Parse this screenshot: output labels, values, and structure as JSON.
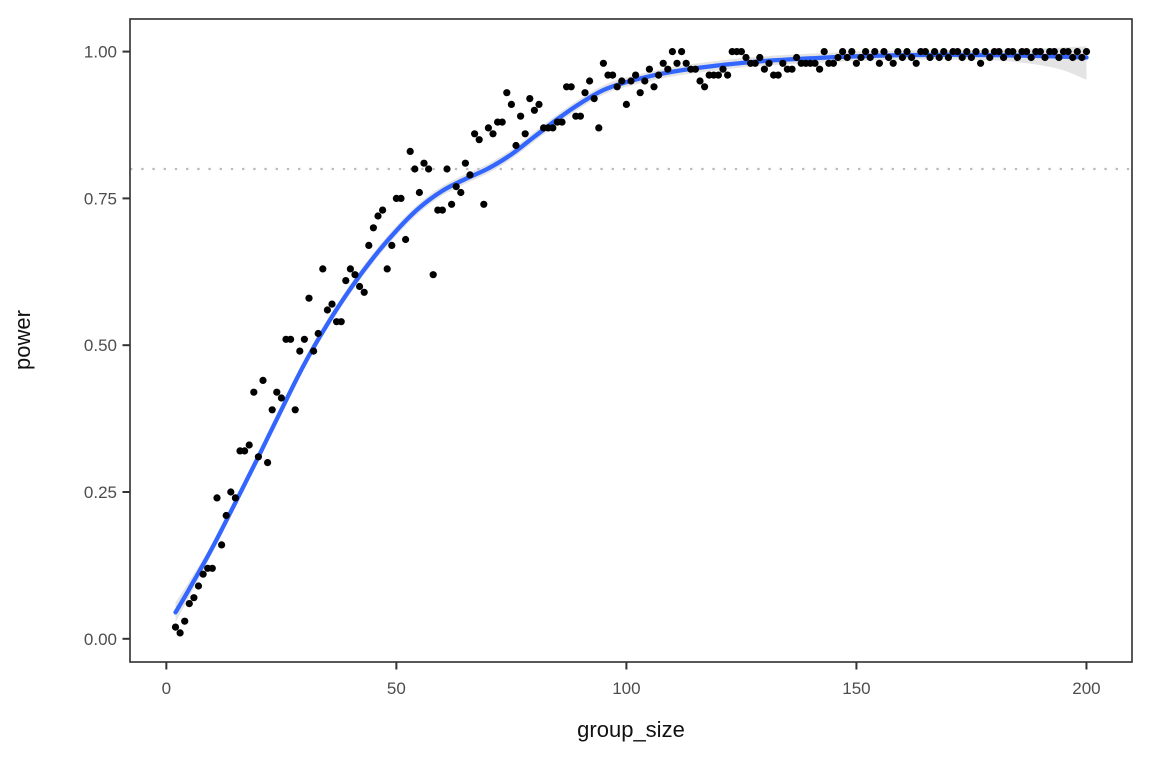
{
  "chart_data": {
    "type": "scatter",
    "title": "",
    "xlabel": "group_size",
    "ylabel": "power",
    "xlim": [
      -7.9,
      209.9
    ],
    "ylim": [
      -0.0395,
      1.0555
    ],
    "grid": "off",
    "legend": "none",
    "x_ticks": [
      {
        "value": 0,
        "label": "0"
      },
      {
        "value": 50,
        "label": "50"
      },
      {
        "value": 100,
        "label": "100"
      },
      {
        "value": 150,
        "label": "150"
      },
      {
        "value": 200,
        "label": "200"
      }
    ],
    "y_ticks": [
      {
        "value": 0.0,
        "label": "0.00"
      },
      {
        "value": 0.25,
        "label": "0.25"
      },
      {
        "value": 0.5,
        "label": "0.50"
      },
      {
        "value": 0.75,
        "label": "0.75"
      },
      {
        "value": 1.0,
        "label": "1.00"
      }
    ],
    "hline": {
      "y": 0.8,
      "linetype": "dotted",
      "color": "#bdbdbd"
    },
    "colors": {
      "point": "#000000",
      "smooth_line": "#3366FF",
      "ribbon": "#c9c9c9",
      "panel_border": "#2e2e2e",
      "tick": "#333333",
      "tick_label": "#4d4d4d",
      "axis_title": "#111111",
      "background": "#ffffff"
    },
    "points": [
      [
        2,
        0.02
      ],
      [
        3,
        0.01
      ],
      [
        4,
        0.03
      ],
      [
        5,
        0.06
      ],
      [
        6,
        0.07
      ],
      [
        7,
        0.09
      ],
      [
        8,
        0.11
      ],
      [
        9,
        0.12
      ],
      [
        10,
        0.12
      ],
      [
        11,
        0.24
      ],
      [
        12,
        0.16
      ],
      [
        13,
        0.21
      ],
      [
        14,
        0.25
      ],
      [
        15,
        0.24
      ],
      [
        16,
        0.32
      ],
      [
        17,
        0.32
      ],
      [
        18,
        0.33
      ],
      [
        19,
        0.42
      ],
      [
        20,
        0.31
      ],
      [
        21,
        0.44
      ],
      [
        22,
        0.3
      ],
      [
        23,
        0.39
      ],
      [
        24,
        0.42
      ],
      [
        25,
        0.41
      ],
      [
        26,
        0.51
      ],
      [
        27,
        0.51
      ],
      [
        28,
        0.39
      ],
      [
        29,
        0.49
      ],
      [
        30,
        0.51
      ],
      [
        31,
        0.58
      ],
      [
        32,
        0.49
      ],
      [
        33,
        0.52
      ],
      [
        34,
        0.63
      ],
      [
        35,
        0.56
      ],
      [
        36,
        0.57
      ],
      [
        37,
        0.54
      ],
      [
        38,
        0.54
      ],
      [
        39,
        0.61
      ],
      [
        40,
        0.63
      ],
      [
        41,
        0.62
      ],
      [
        42,
        0.6
      ],
      [
        43,
        0.59
      ],
      [
        44,
        0.67
      ],
      [
        45,
        0.7
      ],
      [
        46,
        0.72
      ],
      [
        47,
        0.73
      ],
      [
        48,
        0.63
      ],
      [
        49,
        0.67
      ],
      [
        50,
        0.75
      ],
      [
        51,
        0.75
      ],
      [
        52,
        0.68
      ],
      [
        53,
        0.83
      ],
      [
        54,
        0.8
      ],
      [
        55,
        0.76
      ],
      [
        56,
        0.81
      ],
      [
        57,
        0.8
      ],
      [
        58,
        0.62
      ],
      [
        59,
        0.73
      ],
      [
        60,
        0.73
      ],
      [
        61,
        0.8
      ],
      [
        62,
        0.74
      ],
      [
        63,
        0.77
      ],
      [
        64,
        0.76
      ],
      [
        65,
        0.81
      ],
      [
        66,
        0.79
      ],
      [
        67,
        0.86
      ],
      [
        68,
        0.85
      ],
      [
        69,
        0.74
      ],
      [
        70,
        0.87
      ],
      [
        71,
        0.86
      ],
      [
        72,
        0.88
      ],
      [
        73,
        0.88
      ],
      [
        74,
        0.93
      ],
      [
        75,
        0.91
      ],
      [
        76,
        0.84
      ],
      [
        77,
        0.89
      ],
      [
        78,
        0.86
      ],
      [
        79,
        0.92
      ],
      [
        80,
        0.9
      ],
      [
        81,
        0.91
      ],
      [
        82,
        0.87
      ],
      [
        83,
        0.87
      ],
      [
        84,
        0.87
      ],
      [
        85,
        0.88
      ],
      [
        86,
        0.88
      ],
      [
        87,
        0.94
      ],
      [
        88,
        0.94
      ],
      [
        89,
        0.89
      ],
      [
        90,
        0.89
      ],
      [
        91,
        0.93
      ],
      [
        92,
        0.95
      ],
      [
        93,
        0.92
      ],
      [
        94,
        0.87
      ],
      [
        95,
        0.98
      ],
      [
        96,
        0.96
      ],
      [
        97,
        0.96
      ],
      [
        98,
        0.94
      ],
      [
        99,
        0.95
      ],
      [
        100,
        0.91
      ],
      [
        101,
        0.95
      ],
      [
        102,
        0.96
      ],
      [
        103,
        0.93
      ],
      [
        104,
        0.95
      ],
      [
        105,
        0.97
      ],
      [
        106,
        0.94
      ],
      [
        107,
        0.96
      ],
      [
        108,
        0.98
      ],
      [
        109,
        0.97
      ],
      [
        110,
        1.0
      ],
      [
        111,
        0.98
      ],
      [
        112,
        1.0
      ],
      [
        113,
        0.98
      ],
      [
        114,
        0.97
      ],
      [
        115,
        0.97
      ],
      [
        116,
        0.95
      ],
      [
        117,
        0.94
      ],
      [
        118,
        0.96
      ],
      [
        119,
        0.96
      ],
      [
        120,
        0.96
      ],
      [
        121,
        0.97
      ],
      [
        122,
        0.96
      ],
      [
        123,
        1.0
      ],
      [
        124,
        1.0
      ],
      [
        125,
        1.0
      ],
      [
        126,
        0.99
      ],
      [
        127,
        0.98
      ],
      [
        128,
        0.98
      ],
      [
        129,
        0.99
      ],
      [
        130,
        0.97
      ],
      [
        131,
        0.98
      ],
      [
        132,
        0.96
      ],
      [
        133,
        0.96
      ],
      [
        134,
        0.98
      ],
      [
        135,
        0.97
      ],
      [
        136,
        0.97
      ],
      [
        137,
        0.99
      ],
      [
        138,
        0.98
      ],
      [
        139,
        0.98
      ],
      [
        140,
        0.98
      ],
      [
        141,
        0.98
      ],
      [
        142,
        0.97
      ],
      [
        143,
        1.0
      ],
      [
        144,
        0.98
      ],
      [
        145,
        0.98
      ],
      [
        146,
        0.99
      ],
      [
        147,
        1.0
      ],
      [
        148,
        0.99
      ],
      [
        149,
        1.0
      ],
      [
        150,
        0.98
      ],
      [
        151,
        0.99
      ],
      [
        152,
        1.0
      ],
      [
        153,
        0.99
      ],
      [
        154,
        1.0
      ],
      [
        155,
        0.98
      ],
      [
        156,
        1.0
      ],
      [
        157,
        0.99
      ],
      [
        158,
        0.98
      ],
      [
        159,
        1.0
      ],
      [
        160,
        0.99
      ],
      [
        161,
        1.0
      ],
      [
        162,
        0.99
      ],
      [
        163,
        0.98
      ],
      [
        164,
        1.0
      ],
      [
        165,
        1.0
      ],
      [
        166,
        0.99
      ],
      [
        167,
        1.0
      ],
      [
        168,
        0.99
      ],
      [
        169,
        1.0
      ],
      [
        170,
        0.99
      ],
      [
        171,
        1.0
      ],
      [
        172,
        1.0
      ],
      [
        173,
        0.99
      ],
      [
        174,
        1.0
      ],
      [
        175,
        0.99
      ],
      [
        176,
        1.0
      ],
      [
        177,
        0.98
      ],
      [
        178,
        1.0
      ],
      [
        179,
        0.99
      ],
      [
        180,
        1.0
      ],
      [
        181,
        1.0
      ],
      [
        182,
        0.99
      ],
      [
        183,
        1.0
      ],
      [
        184,
        1.0
      ],
      [
        185,
        0.99
      ],
      [
        186,
        1.0
      ],
      [
        187,
        1.0
      ],
      [
        188,
        0.99
      ],
      [
        189,
        1.0
      ],
      [
        190,
        1.0
      ],
      [
        191,
        0.99
      ],
      [
        192,
        1.0
      ],
      [
        193,
        1.0
      ],
      [
        194,
        0.99
      ],
      [
        195,
        1.0
      ],
      [
        196,
        1.0
      ],
      [
        197,
        0.99
      ],
      [
        198,
        1.0
      ],
      [
        199,
        0.99
      ],
      [
        200,
        1.0
      ]
    ],
    "smooth": {
      "method": "loess",
      "line": [
        [
          2,
          0.045
        ],
        [
          5,
          0.085
        ],
        [
          10,
          0.155
        ],
        [
          15,
          0.232
        ],
        [
          20,
          0.31
        ],
        [
          25,
          0.39
        ],
        [
          30,
          0.468
        ],
        [
          35,
          0.536
        ],
        [
          40,
          0.596
        ],
        [
          45,
          0.649
        ],
        [
          50,
          0.695
        ],
        [
          55,
          0.734
        ],
        [
          60,
          0.763
        ],
        [
          65,
          0.783
        ],
        [
          70,
          0.801
        ],
        [
          75,
          0.825
        ],
        [
          80,
          0.855
        ],
        [
          85,
          0.885
        ],
        [
          90,
          0.912
        ],
        [
          95,
          0.9345
        ],
        [
          100,
          0.948
        ],
        [
          105,
          0.958
        ],
        [
          110,
          0.9655
        ],
        [
          115,
          0.9715
        ],
        [
          120,
          0.9765
        ],
        [
          125,
          0.9805
        ],
        [
          130,
          0.984
        ],
        [
          135,
          0.9865
        ],
        [
          140,
          0.9885
        ],
        [
          145,
          0.9905
        ],
        [
          150,
          0.992
        ],
        [
          160,
          0.994
        ],
        [
          170,
          0.9945
        ],
        [
          180,
          0.994
        ],
        [
          190,
          0.9925
        ],
        [
          200,
          0.99
        ]
      ],
      "ribbon": [
        [
          2,
          0.028,
          0.062
        ],
        [
          5,
          0.072,
          0.098
        ],
        [
          10,
          0.147,
          0.163
        ],
        [
          15,
          0.224,
          0.24
        ],
        [
          20,
          0.302,
          0.318
        ],
        [
          25,
          0.382,
          0.398
        ],
        [
          30,
          0.46,
          0.476
        ],
        [
          35,
          0.528,
          0.544
        ],
        [
          40,
          0.588,
          0.604
        ],
        [
          45,
          0.641,
          0.657
        ],
        [
          50,
          0.687,
          0.703
        ],
        [
          55,
          0.726,
          0.742
        ],
        [
          60,
          0.755,
          0.771
        ],
        [
          65,
          0.775,
          0.791
        ],
        [
          70,
          0.793,
          0.809
        ],
        [
          75,
          0.817,
          0.833
        ],
        [
          80,
          0.847,
          0.863
        ],
        [
          85,
          0.877,
          0.893
        ],
        [
          90,
          0.904,
          0.92
        ],
        [
          95,
          0.9265,
          0.9425
        ],
        [
          100,
          0.94,
          0.956
        ],
        [
          110,
          0.9575,
          0.9735
        ],
        [
          120,
          0.9685,
          0.9845
        ],
        [
          130,
          0.976,
          0.992
        ],
        [
          140,
          0.9805,
          0.9965
        ],
        [
          150,
          0.984,
          1.0
        ],
        [
          160,
          0.9862,
          1.0018
        ],
        [
          170,
          0.9864,
          1.0026
        ],
        [
          180,
          0.9848,
          1.0032
        ],
        [
          185,
          0.982,
          1.0042
        ],
        [
          190,
          0.977,
          1.0055
        ],
        [
          195,
          0.968,
          1.007
        ],
        [
          200,
          0.952,
          1.009
        ]
      ]
    }
  }
}
